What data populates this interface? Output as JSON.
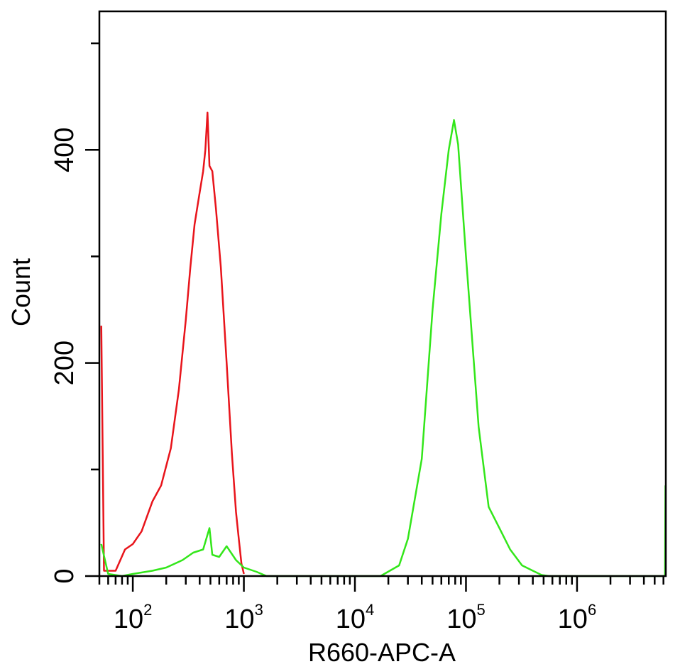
{
  "chart_data": {
    "type": "area",
    "xlabel": "R660-APC-A",
    "ylabel": "Count",
    "x_scale": "log",
    "xlim": [
      50,
      6300000
    ],
    "ylim": [
      0,
      530
    ],
    "x_ticks": [
      {
        "value": 100,
        "base": "10",
        "exp": "2"
      },
      {
        "value": 1000,
        "base": "10",
        "exp": "3"
      },
      {
        "value": 10000,
        "base": "10",
        "exp": "4"
      },
      {
        "value": 100000,
        "base": "10",
        "exp": "5"
      },
      {
        "value": 1000000,
        "base": "10",
        "exp": "6"
      }
    ],
    "y_ticks": [
      {
        "value": 0,
        "label": "0"
      },
      {
        "value": 200,
        "label": "200"
      },
      {
        "value": 400,
        "label": "400"
      }
    ],
    "y_minor_ticks": [
      100,
      300,
      500
    ],
    "colors": {
      "red": "#e8141b",
      "green": "#33e61a"
    },
    "series": [
      {
        "color": "#e8141b",
        "points": [
          [
            52,
            235
          ],
          [
            55,
            5
          ],
          [
            70,
            5
          ],
          [
            85,
            25
          ],
          [
            100,
            30
          ],
          [
            120,
            42
          ],
          [
            150,
            70
          ],
          [
            180,
            85
          ],
          [
            220,
            120
          ],
          [
            260,
            175
          ],
          [
            300,
            240
          ],
          [
            330,
            290
          ],
          [
            360,
            330
          ],
          [
            400,
            360
          ],
          [
            430,
            380
          ],
          [
            450,
            400
          ],
          [
            470,
            435
          ],
          [
            490,
            385
          ],
          [
            520,
            380
          ],
          [
            560,
            345
          ],
          [
            620,
            290
          ],
          [
            700,
            200
          ],
          [
            780,
            115
          ],
          [
            850,
            60
          ],
          [
            900,
            35
          ],
          [
            950,
            12
          ],
          [
            1000,
            2
          ]
        ]
      },
      {
        "color": "#33e61a",
        "points": [
          [
            52,
            30
          ],
          [
            60,
            2
          ],
          [
            80,
            0
          ],
          [
            100,
            2
          ],
          [
            150,
            5
          ],
          [
            200,
            8
          ],
          [
            280,
            15
          ],
          [
            350,
            22
          ],
          [
            430,
            25
          ],
          [
            490,
            45
          ],
          [
            520,
            20
          ],
          [
            600,
            18
          ],
          [
            700,
            28
          ],
          [
            850,
            15
          ],
          [
            1000,
            8
          ],
          [
            1300,
            4
          ],
          [
            1600,
            0
          ],
          [
            17000,
            0
          ],
          [
            25000,
            10
          ],
          [
            30000,
            35
          ],
          [
            40000,
            110
          ],
          [
            50000,
            250
          ],
          [
            60000,
            340
          ],
          [
            70000,
            400
          ],
          [
            78000,
            428
          ],
          [
            85000,
            405
          ],
          [
            100000,
            300
          ],
          [
            130000,
            140
          ],
          [
            160000,
            65
          ],
          [
            200000,
            45
          ],
          [
            250000,
            25
          ],
          [
            320000,
            10
          ],
          [
            400000,
            5
          ],
          [
            480000,
            1
          ],
          [
            560000,
            0
          ],
          [
            6200000,
            0
          ],
          [
            6250000,
            85
          ]
        ]
      }
    ]
  }
}
